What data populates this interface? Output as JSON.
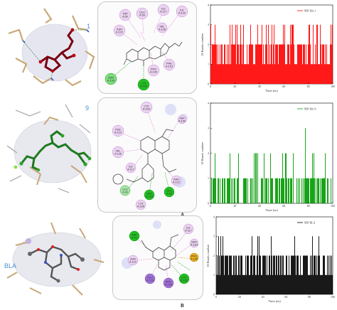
{
  "labels": {
    "panel_a": "A",
    "panel_b": "B"
  },
  "compounds": {
    "c1": "1",
    "c9": "9",
    "bla": "BLA"
  },
  "residue_labels_row1": [
    "TRP A:60",
    "LEU A:59",
    "ILE A:117",
    "ILE A:120",
    "ASN A:122",
    "VAL A:126",
    "ASN A:106",
    "PHE A:123",
    "PRO A:105",
    "LYS A:165"
  ],
  "residue_labels_row2": [
    "LYS A:203",
    "PHE A:123",
    "VAL A:126",
    "ILE A:117",
    "ASP A:160",
    "ASN A:122",
    "SER A:163",
    "GLU A:43",
    "LEU A:39",
    "LYS A:165"
  ],
  "residue_labels_row3": [
    "ASP A:43",
    "ASN A:122",
    "ILE A:117",
    "SER A:163",
    "GLU A:123",
    "ARG A:106",
    "LYS A:165",
    "PRO A:105"
  ],
  "chart_data": [
    {
      "type": "bar",
      "legend": "MD Dm 1",
      "xlabel": "Time (ns)",
      "ylabel": "H-Bonds number",
      "xlim": [
        0,
        100
      ],
      "ylim": [
        0,
        4
      ],
      "xticks": [
        0,
        20,
        40,
        60,
        80,
        100
      ],
      "yticks": [
        0,
        1,
        2,
        3,
        4
      ],
      "color": "#ff0000",
      "levels": [
        {
          "value": 1,
          "coverage": 1.0
        },
        {
          "value": 2,
          "coverage": 0.55
        },
        {
          "value": 3,
          "coverage": 0.12
        }
      ]
    },
    {
      "type": "bar",
      "legend": "MD Dm 9",
      "xlabel": "Time (ns)",
      "ylabel": "H-Bonds number",
      "xlim": [
        0,
        100
      ],
      "ylim": [
        0,
        4
      ],
      "xticks": [
        0,
        20,
        40,
        60,
        80,
        100
      ],
      "yticks": [
        0,
        1,
        2,
        3,
        4
      ],
      "color": "#009900",
      "levels": [
        {
          "value": 1,
          "coverage": 0.5
        },
        {
          "value": 2,
          "coverage": 0.06
        },
        {
          "value": 3,
          "coverage": 0.01
        }
      ]
    },
    {
      "type": "bar",
      "legend": "MD BLA",
      "xlabel": "Time (ns)",
      "ylabel": "H-Bonds number",
      "xlim": [
        0,
        100
      ],
      "ylim": [
        0,
        4
      ],
      "xticks": [
        0,
        20,
        40,
        60,
        80,
        100
      ],
      "yticks": [
        0,
        1,
        2,
        3,
        4
      ],
      "color": "#000000",
      "levels": [
        {
          "value": 1,
          "coverage": 1.0
        },
        {
          "value": 2,
          "coverage": 0.6
        },
        {
          "value": 3,
          "coverage": 0.08
        }
      ]
    }
  ]
}
